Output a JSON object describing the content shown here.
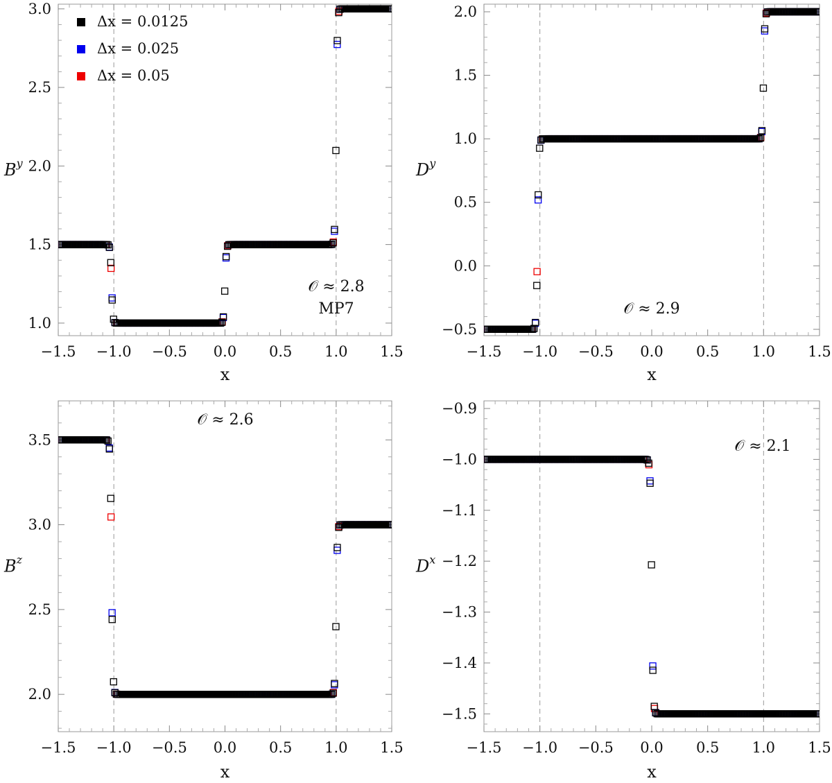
{
  "legend": {
    "entries": [
      {
        "label": "Δx = 0.0125",
        "color": "#000000"
      },
      {
        "label": "Δx = 0.025",
        "color": "#0000ee"
      },
      {
        "label": "Δx = 0.05",
        "color": "#ee0000"
      }
    ]
  },
  "chart_data": [
    {
      "id": "By",
      "type": "scatter",
      "ylabel": "B",
      "ylabel_sup": "y",
      "xlabel": "x",
      "xlim": [
        -1.5,
        1.5
      ],
      "ylim": [
        0.92,
        3.03
      ],
      "xticks": [
        -1.5,
        -1.0,
        -0.5,
        0.0,
        0.5,
        1.0,
        1.5
      ],
      "yticks": [
        1.0,
        1.5,
        2.0,
        2.5,
        3.0
      ],
      "vlines": [
        -1.0,
        1.0
      ],
      "annotations": [
        "𝒪 ≈ 2.8",
        "MP7"
      ],
      "profile": {
        "left": 1.5,
        "mid": 1.0,
        "plateau": 1.5,
        "right": 3.0,
        "steps": [
          {
            "at": -1.02,
            "from": 1.5,
            "to": 1.0,
            "w": 0.012
          },
          {
            "at": 0.0,
            "from": 1.0,
            "to": 1.5,
            "w": 0.012
          },
          {
            "at": 1.0,
            "from": 1.5,
            "to": 3.0,
            "w": 0.011
          }
        ]
      }
    },
    {
      "id": "Dy",
      "type": "scatter",
      "ylabel": "D",
      "ylabel_sup": "y",
      "xlabel": "x",
      "xlim": [
        -1.5,
        1.5
      ],
      "ylim": [
        -0.55,
        2.06
      ],
      "xticks": [
        -1.5,
        -1.0,
        -0.5,
        0.0,
        0.5,
        1.0,
        1.5
      ],
      "yticks": [
        -0.5,
        0.0,
        0.5,
        1.0,
        1.5,
        2.0
      ],
      "vlines": [
        -1.0,
        1.0
      ],
      "annotations": [
        "𝒪 ≈ 2.9"
      ],
      "profile": {
        "steps": [
          {
            "at": -1.02,
            "from": -0.5,
            "to": 1.0,
            "w": 0.012
          },
          {
            "at": 1.0,
            "from": 1.0,
            "to": 2.0,
            "w": 0.011
          }
        ]
      }
    },
    {
      "id": "Bz",
      "type": "scatter",
      "ylabel": "B",
      "ylabel_sup": "z",
      "xlabel": "x",
      "xlim": [
        -1.5,
        1.5
      ],
      "ylim": [
        1.78,
        3.73
      ],
      "xticks": [
        -1.5,
        -1.0,
        -0.5,
        0.0,
        0.5,
        1.0,
        1.5
      ],
      "yticks": [
        2.0,
        2.5,
        3.0,
        3.5
      ],
      "vlines": [
        -1.0,
        1.0
      ],
      "annotations": [
        "𝒪 ≈ 2.6"
      ],
      "profile": {
        "steps": [
          {
            "at": -1.02,
            "from": 3.5,
            "to": 2.0,
            "w": 0.012
          },
          {
            "at": 1.0,
            "from": 2.0,
            "to": 3.0,
            "w": 0.011
          }
        ]
      }
    },
    {
      "id": "Dx",
      "type": "scatter",
      "ylabel": "D",
      "ylabel_sup": "x",
      "xlabel": "x",
      "xlim": [
        -1.5,
        1.5
      ],
      "ylim": [
        -1.535,
        -0.885
      ],
      "xticks": [
        -1.5,
        -1.0,
        -0.5,
        0.0,
        0.5,
        1.0,
        1.5
      ],
      "yticks": [
        -1.5,
        -1.4,
        -1.3,
        -1.2,
        -1.1,
        -1.0,
        -0.9
      ],
      "vlines": [
        -1.0,
        1.0
      ],
      "annotations": [
        "𝒪 ≈ 2.1"
      ],
      "profile": {
        "steps": [
          {
            "at": 0.0,
            "from": -1.0,
            "to": -1.5,
            "w": 0.013
          }
        ]
      }
    }
  ]
}
